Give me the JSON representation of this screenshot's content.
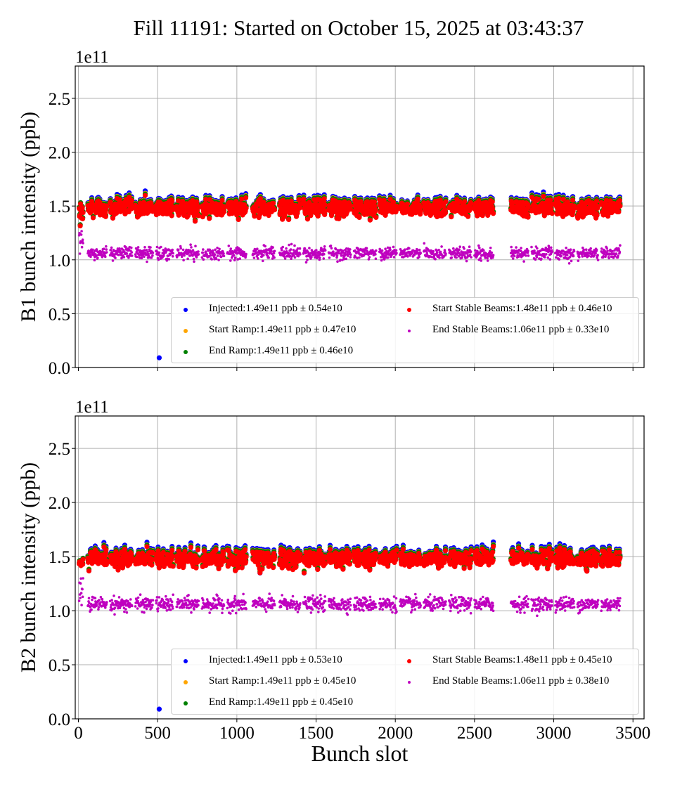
{
  "figure": {
    "title": "Fill 11191: Started on October 15, 2025 at 03:43:37"
  },
  "colors": {
    "Injected": "#0000ff",
    "Start Ramp": "#ffa500",
    "End Ramp": "#008000",
    "Start Stable Beams": "#ff0000",
    "End Stable Beams": "#bf00bf",
    "grid": "#b0b0b0"
  },
  "chart_data": [
    {
      "type": "scatter",
      "panel": "B1",
      "title": "Fill 11191: Started on October 15, 2025 at 03:43:37",
      "xlabel": "",
      "ylabel": "B1 bunch intensity (ppb)",
      "offset_label": "1e11",
      "xlim": [
        -20,
        3570
      ],
      "ylim": [
        0,
        2.8
      ],
      "y_scale": 100000000000.0,
      "xticks": [
        0,
        500,
        1000,
        1500,
        2000,
        2500,
        3000,
        3500
      ],
      "xtick_labels": [],
      "yticks": [
        0.0,
        0.5,
        1.0,
        1.5,
        2.0,
        2.5
      ],
      "ytick_labels": [
        "0.0",
        "0.5",
        "1.0",
        "1.5",
        "2.0",
        "2.5"
      ],
      "grid": true,
      "legend_placement": "lower-right",
      "legend": [
        "Injected:1.49e11 ppb ± 0.54e10",
        "Start Ramp:1.49e11 ppb ± 0.47e10",
        "End Ramp:1.49e11 ppb ± 0.46e10",
        "Start Stable Beams:1.48e11 ppb ± 0.46e10",
        "End Stable Beams:1.06e11 ppb ± 0.33e10"
      ],
      "series": [
        {
          "name": "Injected",
          "mean": 1.49,
          "std": 0.054
        },
        {
          "name": "Start Ramp",
          "mean": 1.49,
          "std": 0.047
        },
        {
          "name": "End Ramp",
          "mean": 1.49,
          "std": 0.046
        },
        {
          "name": "Start Stable Beams",
          "mean": 1.48,
          "std": 0.046
        },
        {
          "name": "End Stable Beams",
          "mean": 1.06,
          "std": 0.033
        }
      ],
      "outliers": [
        {
          "series": "Injected",
          "x": 510,
          "y": 0.09
        }
      ],
      "trains": [
        [
          5,
          30
        ],
        [
          60,
          180
        ],
        [
          200,
          340
        ],
        [
          360,
          470
        ],
        [
          490,
          600
        ],
        [
          620,
          760
        ],
        [
          780,
          920
        ],
        [
          940,
          1060
        ],
        [
          1100,
          1240
        ],
        [
          1270,
          1400
        ],
        [
          1420,
          1560
        ],
        [
          1580,
          1720
        ],
        [
          1740,
          1880
        ],
        [
          1900,
          2010
        ],
        [
          2030,
          2160
        ],
        [
          2180,
          2320
        ],
        [
          2340,
          2480
        ],
        [
          2500,
          2620
        ],
        [
          2730,
          2840
        ],
        [
          2860,
          2990
        ],
        [
          3010,
          3130
        ],
        [
          3150,
          3280
        ],
        [
          3300,
          3420
        ]
      ]
    },
    {
      "type": "scatter",
      "panel": "B2",
      "title": "",
      "xlabel": "Bunch slot",
      "ylabel": "B2 bunch intensity (ppb)",
      "offset_label": "1e11",
      "xlim": [
        -20,
        3570
      ],
      "ylim": [
        0,
        2.8
      ],
      "y_scale": 100000000000.0,
      "xticks": [
        0,
        500,
        1000,
        1500,
        2000,
        2500,
        3000,
        3500
      ],
      "xtick_labels": [
        "0",
        "500",
        "1000",
        "1500",
        "2000",
        "2500",
        "3000",
        "3500"
      ],
      "yticks": [
        0.0,
        0.5,
        1.0,
        1.5,
        2.0,
        2.5
      ],
      "ytick_labels": [
        "0.0",
        "0.5",
        "1.0",
        "1.5",
        "2.0",
        "2.5"
      ],
      "grid": true,
      "legend_placement": "lower-right",
      "legend": [
        "Injected:1.49e11 ppb ± 0.53e10",
        "Start Ramp:1.49e11 ppb ± 0.45e10",
        "End Ramp:1.49e11 ppb ± 0.45e10",
        "Start Stable Beams:1.48e11 ppb ± 0.45e10",
        "End Stable Beams:1.06e11 ppb ± 0.38e10"
      ],
      "series": [
        {
          "name": "Injected",
          "mean": 1.49,
          "std": 0.053
        },
        {
          "name": "Start Ramp",
          "mean": 1.49,
          "std": 0.045
        },
        {
          "name": "End Ramp",
          "mean": 1.49,
          "std": 0.045
        },
        {
          "name": "Start Stable Beams",
          "mean": 1.48,
          "std": 0.045
        },
        {
          "name": "End Stable Beams",
          "mean": 1.06,
          "std": 0.038
        }
      ],
      "outliers": [
        {
          "series": "Injected",
          "x": 510,
          "y": 0.09
        }
      ],
      "trains": [
        [
          5,
          30
        ],
        [
          60,
          180
        ],
        [
          200,
          340
        ],
        [
          360,
          470
        ],
        [
          490,
          600
        ],
        [
          620,
          760
        ],
        [
          780,
          920
        ],
        [
          940,
          1060
        ],
        [
          1100,
          1240
        ],
        [
          1270,
          1400
        ],
        [
          1420,
          1560
        ],
        [
          1580,
          1720
        ],
        [
          1740,
          1880
        ],
        [
          1900,
          2010
        ],
        [
          2030,
          2160
        ],
        [
          2180,
          2320
        ],
        [
          2340,
          2480
        ],
        [
          2500,
          2620
        ],
        [
          2730,
          2840
        ],
        [
          2860,
          2990
        ],
        [
          3010,
          3130
        ],
        [
          3150,
          3280
        ],
        [
          3300,
          3420
        ]
      ]
    }
  ]
}
